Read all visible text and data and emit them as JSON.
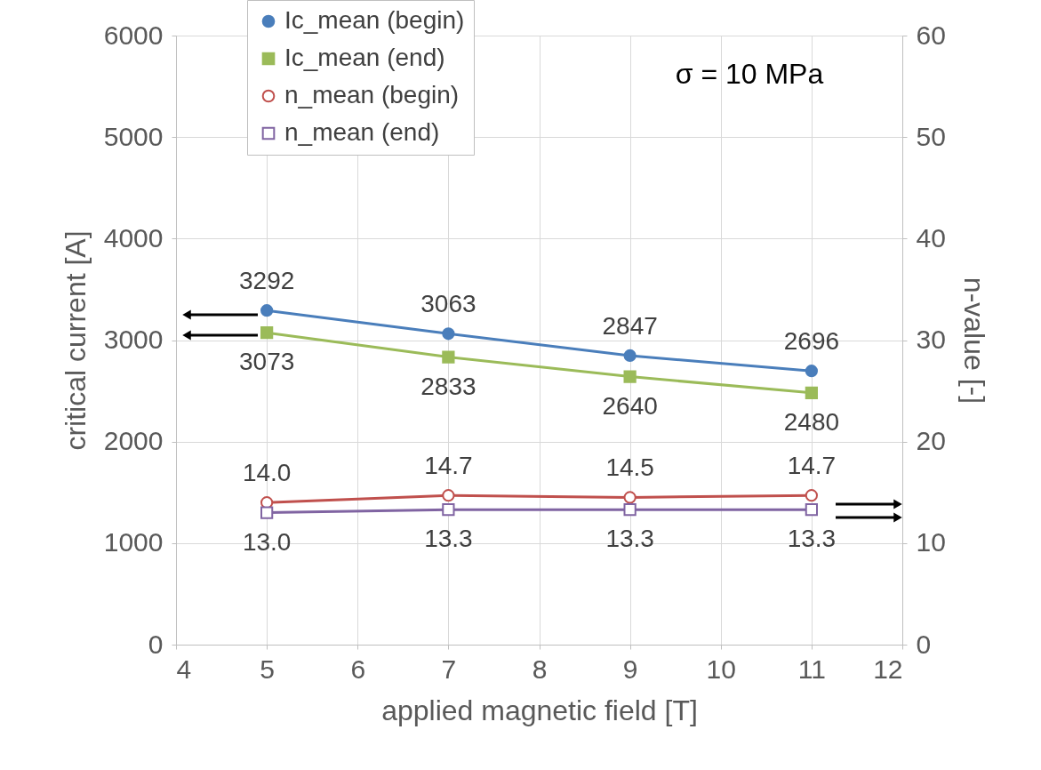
{
  "chart_data": {
    "type": "line",
    "xlabel": "applied magnetic field [T]",
    "ylabel": "critical current [A]",
    "y2label": "n-value [-]",
    "xlim": [
      4,
      12
    ],
    "xticks": [
      4,
      5,
      6,
      7,
      8,
      9,
      10,
      11,
      12
    ],
    "ylim": [
      0,
      6000
    ],
    "yticks": [
      0,
      1000,
      2000,
      3000,
      4000,
      5000,
      6000
    ],
    "y2lim": [
      0,
      60
    ],
    "y2ticks": [
      0,
      10,
      20,
      30,
      40,
      50,
      60
    ],
    "x": [
      5,
      7,
      9,
      11
    ],
    "series": [
      {
        "name": "Ic_mean (begin)",
        "color": "#4a7ebb",
        "marker": "circle",
        "values": [
          3292,
          3063,
          2847,
          2696
        ],
        "value_labels": [
          "3292",
          "3063",
          "2847",
          "2696"
        ]
      },
      {
        "name": "Ic_mean (end)",
        "color": "#9bbb59",
        "marker": "square",
        "values": [
          3073,
          2833,
          2640,
          2480
        ],
        "value_labels": [
          "3073",
          "2833",
          "2640",
          "2480"
        ]
      },
      {
        "name": "n_mean (begin)",
        "color": "#c0504d",
        "marker": "circle",
        "axis": "y2",
        "values": [
          14.0,
          14.7,
          14.5,
          14.7
        ],
        "value_labels": [
          "14.0",
          "14.7",
          "14.5",
          "14.7"
        ]
      },
      {
        "name": "n_mean (end)",
        "color": "#8064a2",
        "marker": "square",
        "axis": "y2",
        "values": [
          13.0,
          13.3,
          13.3,
          13.3
        ],
        "value_labels": [
          "13.0",
          "13.3",
          "13.3",
          "13.3"
        ]
      }
    ],
    "annotations": [
      "σ = 10 MPa"
    ],
    "grid": true,
    "legend": "top left"
  }
}
